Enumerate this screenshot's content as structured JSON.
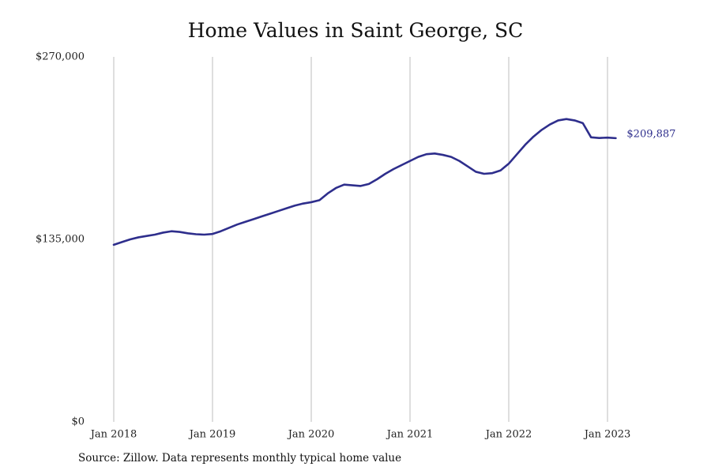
{
  "chart_data": {
    "type": "line",
    "title": "Home Values in Saint George, SC",
    "xlabel": "",
    "ylabel": "",
    "x_ticks": [
      "Jan 2018",
      "Jan 2019",
      "Jan 2020",
      "Jan 2021",
      "Jan 2022",
      "Jan 2023"
    ],
    "y_ticks": [
      "$270,000",
      "$135,000",
      "$0"
    ],
    "ylim": [
      0,
      270000
    ],
    "xlim": [
      "2018-01",
      "2023-02"
    ],
    "grid": "vertical",
    "series": [
      {
        "color": "#2e2e8c",
        "end_label": "$209,887",
        "points": [
          [
            "2018-01",
            131000
          ],
          [
            "2018-02",
            133000
          ],
          [
            "2018-03",
            135000
          ],
          [
            "2018-04",
            136500
          ],
          [
            "2018-05",
            137500
          ],
          [
            "2018-06",
            138500
          ],
          [
            "2018-07",
            140000
          ],
          [
            "2018-08",
            141000
          ],
          [
            "2018-09",
            140500
          ],
          [
            "2018-10",
            139500
          ],
          [
            "2018-11",
            138800
          ],
          [
            "2018-12",
            138500
          ],
          [
            "2019-01",
            139000
          ],
          [
            "2019-02",
            141000
          ],
          [
            "2019-03",
            143500
          ],
          [
            "2019-04",
            146000
          ],
          [
            "2019-05",
            148000
          ],
          [
            "2019-06",
            150000
          ],
          [
            "2019-07",
            152000
          ],
          [
            "2019-08",
            154000
          ],
          [
            "2019-09",
            156000
          ],
          [
            "2019-10",
            158000
          ],
          [
            "2019-11",
            160000
          ],
          [
            "2019-12",
            161500
          ],
          [
            "2020-01",
            162500
          ],
          [
            "2020-02",
            164000
          ],
          [
            "2020-03",
            169000
          ],
          [
            "2020-04",
            173000
          ],
          [
            "2020-05",
            175500
          ],
          [
            "2020-06",
            175000
          ],
          [
            "2020-07",
            174500
          ],
          [
            "2020-08",
            176000
          ],
          [
            "2020-09",
            179500
          ],
          [
            "2020-10",
            183500
          ],
          [
            "2020-11",
            187000
          ],
          [
            "2020-12",
            190000
          ],
          [
            "2021-01",
            193000
          ],
          [
            "2021-02",
            196000
          ],
          [
            "2021-03",
            198000
          ],
          [
            "2021-04",
            198500
          ],
          [
            "2021-05",
            197500
          ],
          [
            "2021-06",
            196000
          ],
          [
            "2021-07",
            193000
          ],
          [
            "2021-08",
            189000
          ],
          [
            "2021-09",
            185000
          ],
          [
            "2021-10",
            183500
          ],
          [
            "2021-11",
            184000
          ],
          [
            "2021-12",
            186000
          ],
          [
            "2022-01",
            191000
          ],
          [
            "2022-02",
            198000
          ],
          [
            "2022-03",
            205000
          ],
          [
            "2022-04",
            211000
          ],
          [
            "2022-05",
            216000
          ],
          [
            "2022-06",
            220000
          ],
          [
            "2022-07",
            223000
          ],
          [
            "2022-08",
            224000
          ],
          [
            "2022-09",
            223000
          ],
          [
            "2022-10",
            221000
          ],
          [
            "2022-11",
            210500
          ],
          [
            "2022-12",
            210000
          ],
          [
            "2023-01",
            210300
          ],
          [
            "2023-02",
            209887
          ]
        ]
      }
    ]
  },
  "footer": {
    "source": "Source: Zillow. Data represents monthly typical home value"
  }
}
